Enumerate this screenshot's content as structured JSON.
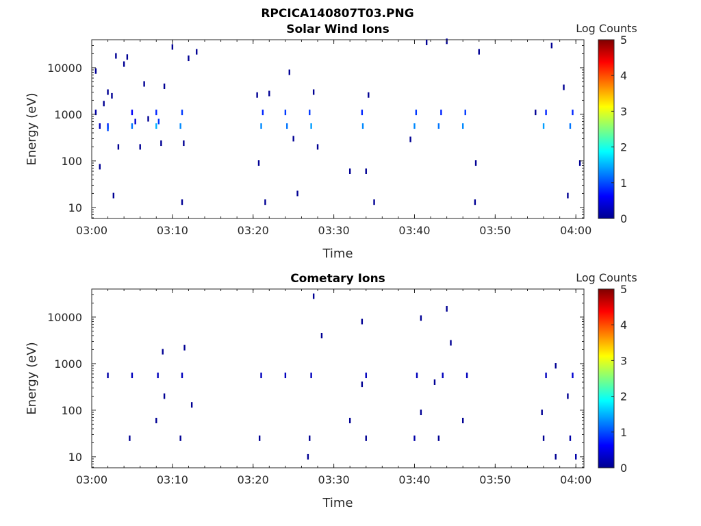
{
  "figure": {
    "main_title": "RPCICA140807T03.PNG"
  },
  "chart_data": [
    {
      "type": "heatmap",
      "title": "Solar Wind Ions",
      "xlabel": "Time",
      "ylabel": "Energy (eV)",
      "y_scale": "log",
      "xlim": [
        "03:00",
        "04:01"
      ],
      "ylim": [
        5.8,
        40000
      ],
      "x_ticks": [
        "03:00",
        "03:10",
        "03:20",
        "03:30",
        "03:40",
        "03:50",
        "04:00"
      ],
      "y_ticks": [
        10,
        100,
        1000,
        10000
      ],
      "colorbar": {
        "label": "Log Counts",
        "min": 0,
        "max": 5,
        "ticks": [
          0,
          1,
          2,
          3,
          4,
          5
        ],
        "colormap": "jet"
      },
      "points": [
        {
          "t": "03:00.5",
          "e": 8500,
          "c": 0.1
        },
        {
          "t": "03:00.5",
          "e": 1100,
          "c": 0.2
        },
        {
          "t": "03:01",
          "e": 560,
          "c": 0.3
        },
        {
          "t": "03:01",
          "e": 75,
          "c": 0.1
        },
        {
          "t": "03:01.5",
          "e": 1700,
          "c": 0.1
        },
        {
          "t": "03:02",
          "e": 3000,
          "c": 0.1
        },
        {
          "t": "03:02",
          "e": 560,
          "c": 0.8
        },
        {
          "t": "03:02",
          "e": 500,
          "c": 1.0
        },
        {
          "t": "03:02.5",
          "e": 2500,
          "c": 0.1
        },
        {
          "t": "03:02.7",
          "e": 18,
          "c": 0.1
        },
        {
          "t": "03:03",
          "e": 18000,
          "c": 0.1
        },
        {
          "t": "03:03.3",
          "e": 200,
          "c": 0.1
        },
        {
          "t": "03:04",
          "e": 12000,
          "c": 0.1
        },
        {
          "t": "03:04.4",
          "e": 17000,
          "c": 0.1
        },
        {
          "t": "03:05",
          "e": 560,
          "c": 1.2
        },
        {
          "t": "03:05",
          "e": 1100,
          "c": 0.6
        },
        {
          "t": "03:05.4",
          "e": 700,
          "c": 0.4
        },
        {
          "t": "03:06",
          "e": 200,
          "c": 0.1
        },
        {
          "t": "03:06.5",
          "e": 4500,
          "c": 0.1
        },
        {
          "t": "03:07",
          "e": 800,
          "c": 0.1
        },
        {
          "t": "03:08",
          "e": 1100,
          "c": 0.8
        },
        {
          "t": "03:08",
          "e": 560,
          "c": 1.5
        },
        {
          "t": "03:08.3",
          "e": 700,
          "c": 0.9
        },
        {
          "t": "03:08.6",
          "e": 240,
          "c": 0.1
        },
        {
          "t": "03:09",
          "e": 4000,
          "c": 0.1
        },
        {
          "t": "03:10",
          "e": 28000,
          "c": 0.1
        },
        {
          "t": "03:11",
          "e": 560,
          "c": 1.3
        },
        {
          "t": "03:11.2",
          "e": 1100,
          "c": 0.9
        },
        {
          "t": "03:11.2",
          "e": 13,
          "c": 0.1
        },
        {
          "t": "03:11.4",
          "e": 240,
          "c": 0.1
        },
        {
          "t": "03:12",
          "e": 16000,
          "c": 0.1
        },
        {
          "t": "03:13",
          "e": 22000,
          "c": 0.1
        },
        {
          "t": "03:20.5",
          "e": 2600,
          "c": 0.1
        },
        {
          "t": "03:20.7",
          "e": 90,
          "c": 0.1
        },
        {
          "t": "03:21",
          "e": 560,
          "c": 1.3
        },
        {
          "t": "03:21.2",
          "e": 1100,
          "c": 0.8
        },
        {
          "t": "03:21.5",
          "e": 13,
          "c": 0.1
        },
        {
          "t": "03:22",
          "e": 2800,
          "c": 0.1
        },
        {
          "t": "03:24",
          "e": 1100,
          "c": 0.9
        },
        {
          "t": "03:24.2",
          "e": 560,
          "c": 1.2
        },
        {
          "t": "03:24.5",
          "e": 8000,
          "c": 0.1
        },
        {
          "t": "03:25",
          "e": 300,
          "c": 0.1
        },
        {
          "t": "03:25.5",
          "e": 20,
          "c": 0.1
        },
        {
          "t": "03:27",
          "e": 1100,
          "c": 0.9
        },
        {
          "t": "03:27.2",
          "e": 560,
          "c": 1.4
        },
        {
          "t": "03:27.5",
          "e": 3000,
          "c": 0.1
        },
        {
          "t": "03:28",
          "e": 200,
          "c": 0.1
        },
        {
          "t": "03:32",
          "e": 60,
          "c": 0.1
        },
        {
          "t": "03:33.5",
          "e": 1100,
          "c": 0.8
        },
        {
          "t": "03:33.6",
          "e": 560,
          "c": 1.3
        },
        {
          "t": "03:34",
          "e": 60,
          "c": 0.1
        },
        {
          "t": "03:34.3",
          "e": 2600,
          "c": 0.1
        },
        {
          "t": "03:35",
          "e": 13,
          "c": 0.1
        },
        {
          "t": "03:39.5",
          "e": 290,
          "c": 0.1
        },
        {
          "t": "03:40",
          "e": 560,
          "c": 1.3
        },
        {
          "t": "03:40.2",
          "e": 1100,
          "c": 0.9
        },
        {
          "t": "03:41.5",
          "e": 35000,
          "c": 0.1
        },
        {
          "t": "03:43",
          "e": 560,
          "c": 1.2
        },
        {
          "t": "03:43.3",
          "e": 1100,
          "c": 0.8
        },
        {
          "t": "03:44",
          "e": 37000,
          "c": 0.1
        },
        {
          "t": "03:46",
          "e": 560,
          "c": 1.3
        },
        {
          "t": "03:46.3",
          "e": 1100,
          "c": 0.9
        },
        {
          "t": "03:47.5",
          "e": 13,
          "c": 0.1
        },
        {
          "t": "03:47.6",
          "e": 90,
          "c": 0.1
        },
        {
          "t": "03:48",
          "e": 22000,
          "c": 0.1
        },
        {
          "t": "03:55",
          "e": 1100,
          "c": 0.1
        },
        {
          "t": "03:56",
          "e": 560,
          "c": 1.4
        },
        {
          "t": "03:56.3",
          "e": 1100,
          "c": 0.8
        },
        {
          "t": "03:57",
          "e": 30000,
          "c": 0.1
        },
        {
          "t": "03:58.5",
          "e": 3800,
          "c": 0.1
        },
        {
          "t": "03:59",
          "e": 18,
          "c": 0.1
        },
        {
          "t": "03:59.3",
          "e": 560,
          "c": 1.2
        },
        {
          "t": "03:59.6",
          "e": 1100,
          "c": 0.8
        },
        {
          "t": "04:00.5",
          "e": 90,
          "c": 0.1
        }
      ]
    },
    {
      "type": "heatmap",
      "title": "Cometary Ions",
      "xlabel": "Time",
      "ylabel": "Energy (eV)",
      "y_scale": "log",
      "xlim": [
        "03:00",
        "04:01"
      ],
      "ylim": [
        5.8,
        40000
      ],
      "x_ticks": [
        "03:00",
        "03:10",
        "03:20",
        "03:30",
        "03:40",
        "03:50",
        "04:00"
      ],
      "y_ticks": [
        10,
        100,
        1000,
        10000
      ],
      "colorbar": {
        "label": "Log Counts",
        "min": 0,
        "max": 5,
        "ticks": [
          0,
          1,
          2,
          3,
          4,
          5
        ],
        "colormap": "jet"
      },
      "points": [
        {
          "t": "03:02",
          "e": 560,
          "c": 0.2
        },
        {
          "t": "03:04.7",
          "e": 25,
          "c": 0.1
        },
        {
          "t": "03:05",
          "e": 560,
          "c": 0.3
        },
        {
          "t": "03:08",
          "e": 60,
          "c": 0.1
        },
        {
          "t": "03:08.2",
          "e": 560,
          "c": 0.3
        },
        {
          "t": "03:08.8",
          "e": 1800,
          "c": 0.1
        },
        {
          "t": "03:09",
          "e": 200,
          "c": 0.1
        },
        {
          "t": "03:11",
          "e": 25,
          "c": 0.1
        },
        {
          "t": "03:11.2",
          "e": 560,
          "c": 0.3
        },
        {
          "t": "03:11.5",
          "e": 2200,
          "c": 0.1
        },
        {
          "t": "03:12.4",
          "e": 130,
          "c": 0.1
        },
        {
          "t": "03:20.8",
          "e": 25,
          "c": 0.1
        },
        {
          "t": "03:21",
          "e": 560,
          "c": 0.3
        },
        {
          "t": "03:24",
          "e": 560,
          "c": 0.3
        },
        {
          "t": "03:26.8",
          "e": 10,
          "c": 0.1
        },
        {
          "t": "03:27",
          "e": 25,
          "c": 0.1
        },
        {
          "t": "03:27.2",
          "e": 560,
          "c": 0.3
        },
        {
          "t": "03:27.5",
          "e": 28000,
          "c": 0.1
        },
        {
          "t": "03:28.5",
          "e": 4000,
          "c": 0.1
        },
        {
          "t": "03:32",
          "e": 60,
          "c": 0.1
        },
        {
          "t": "03:33.5",
          "e": 360,
          "c": 0.1
        },
        {
          "t": "03:33.5",
          "e": 8000,
          "c": 0.1
        },
        {
          "t": "03:34",
          "e": 25,
          "c": 0.1
        },
        {
          "t": "03:34",
          "e": 560,
          "c": 0.3
        },
        {
          "t": "03:40",
          "e": 25,
          "c": 0.2
        },
        {
          "t": "03:40.3",
          "e": 560,
          "c": 0.3
        },
        {
          "t": "03:40.8",
          "e": 90,
          "c": 0.1
        },
        {
          "t": "03:40.8",
          "e": 9500,
          "c": 0.1
        },
        {
          "t": "03:42.5",
          "e": 400,
          "c": 0.1
        },
        {
          "t": "03:43",
          "e": 25,
          "c": 0.1
        },
        {
          "t": "03:43.5",
          "e": 560,
          "c": 0.3
        },
        {
          "t": "03:44",
          "e": 15000,
          "c": 0.1
        },
        {
          "t": "03:44.5",
          "e": 2800,
          "c": 0.1
        },
        {
          "t": "03:46",
          "e": 60,
          "c": 0.1
        },
        {
          "t": "03:46.5",
          "e": 560,
          "c": 0.3
        },
        {
          "t": "03:55.8",
          "e": 90,
          "c": 0.1
        },
        {
          "t": "03:56",
          "e": 25,
          "c": 0.1
        },
        {
          "t": "03:56.3",
          "e": 560,
          "c": 0.3
        },
        {
          "t": "03:57.5",
          "e": 10,
          "c": 0.1
        },
        {
          "t": "03:57.5",
          "e": 900,
          "c": 0.1
        },
        {
          "t": "03:59",
          "e": 200,
          "c": 0.1
        },
        {
          "t": "03:59.3",
          "e": 25,
          "c": 0.2
        },
        {
          "t": "03:59.6",
          "e": 560,
          "c": 0.4
        },
        {
          "t": "04:00",
          "e": 10,
          "c": 0.2
        }
      ]
    }
  ]
}
